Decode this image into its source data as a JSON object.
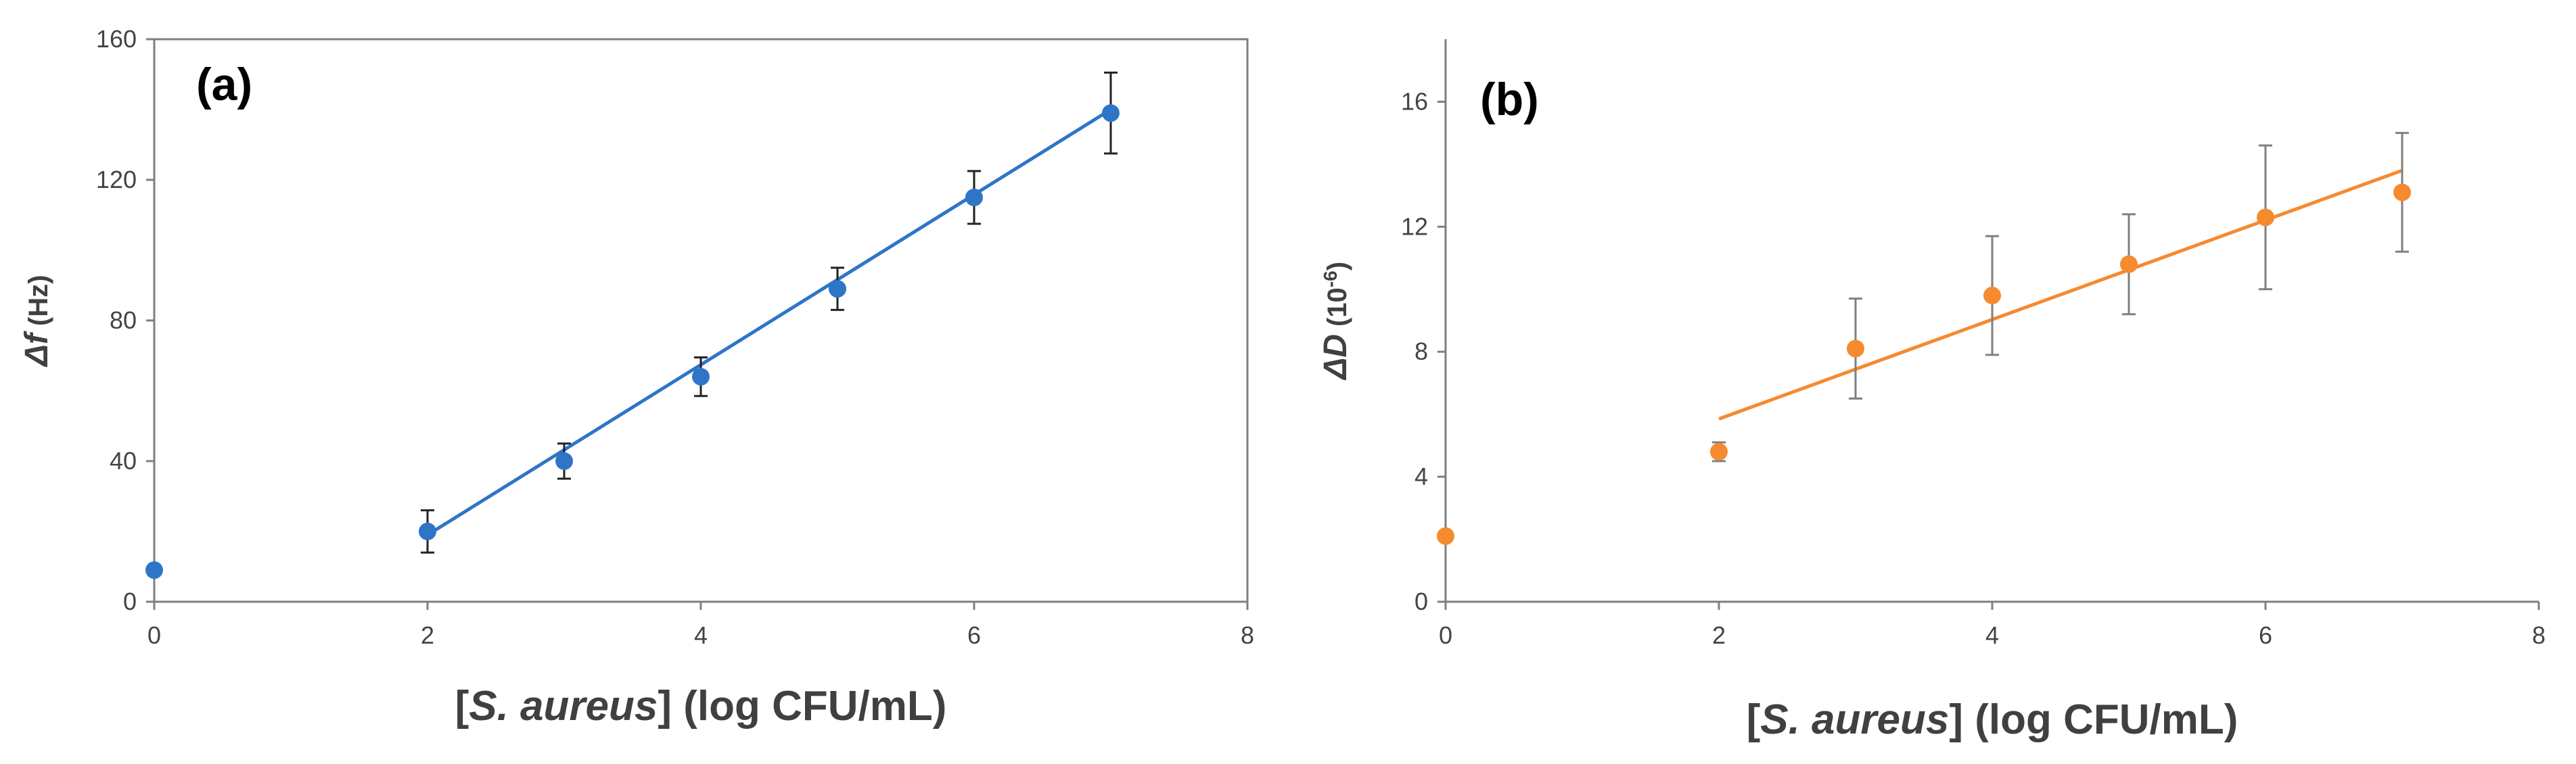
{
  "chart_data": [
    {
      "type": "scatter",
      "panel_label": "(a)",
      "ylabel": {
        "symbol": "Δf",
        "unit": " (Hz)"
      },
      "xlabel": {
        "open": "[",
        "italic": "S. aureus",
        "close": "] (log CFU/mL)"
      },
      "xlim": [
        0,
        8
      ],
      "ylim": [
        0,
        160
      ],
      "xticks": [
        "0",
        "2",
        "4",
        "6",
        "8"
      ],
      "yticks": [
        "0",
        "40",
        "80",
        "120",
        "160"
      ],
      "grid": false,
      "legend": "none",
      "color": "#2e75c8",
      "series": [
        {
          "x": [
            0,
            2,
            3,
            4,
            5,
            6,
            7
          ],
          "y": [
            9,
            20,
            40,
            64,
            89,
            115,
            139
          ],
          "err": [
            0,
            6,
            5,
            5.5,
            6,
            7.5,
            11.5
          ]
        }
      ],
      "fit": {
        "x": [
          2,
          7
        ],
        "y": [
          19,
          140
        ]
      }
    },
    {
      "type": "scatter",
      "panel_label": "(b)",
      "ylabel": {
        "symbol": "ΔD",
        "unit": " (10",
        "sup": "-6",
        "close": ")"
      },
      "xlabel": {
        "open": "[",
        "italic": "S. aureus",
        "close": "] (log CFU/mL)"
      },
      "xlim": [
        0,
        8
      ],
      "ylim": [
        0,
        18
      ],
      "xticks": [
        "0",
        "2",
        "4",
        "6",
        "8"
      ],
      "yticks": [
        "0",
        "4",
        "8",
        "12",
        "16"
      ],
      "grid": false,
      "legend": "none",
      "color": "#f58a2f",
      "series": [
        {
          "x": [
            0,
            2,
            3,
            4,
            5,
            6,
            7
          ],
          "y": [
            2.1,
            4.8,
            8.1,
            9.8,
            10.8,
            12.3,
            13.1
          ],
          "err": [
            0,
            0.3,
            1.6,
            1.9,
            1.6,
            2.3,
            1.9
          ]
        }
      ],
      "fit": {
        "x": [
          2,
          7
        ],
        "y": [
          5.85,
          13.8
        ]
      }
    }
  ]
}
